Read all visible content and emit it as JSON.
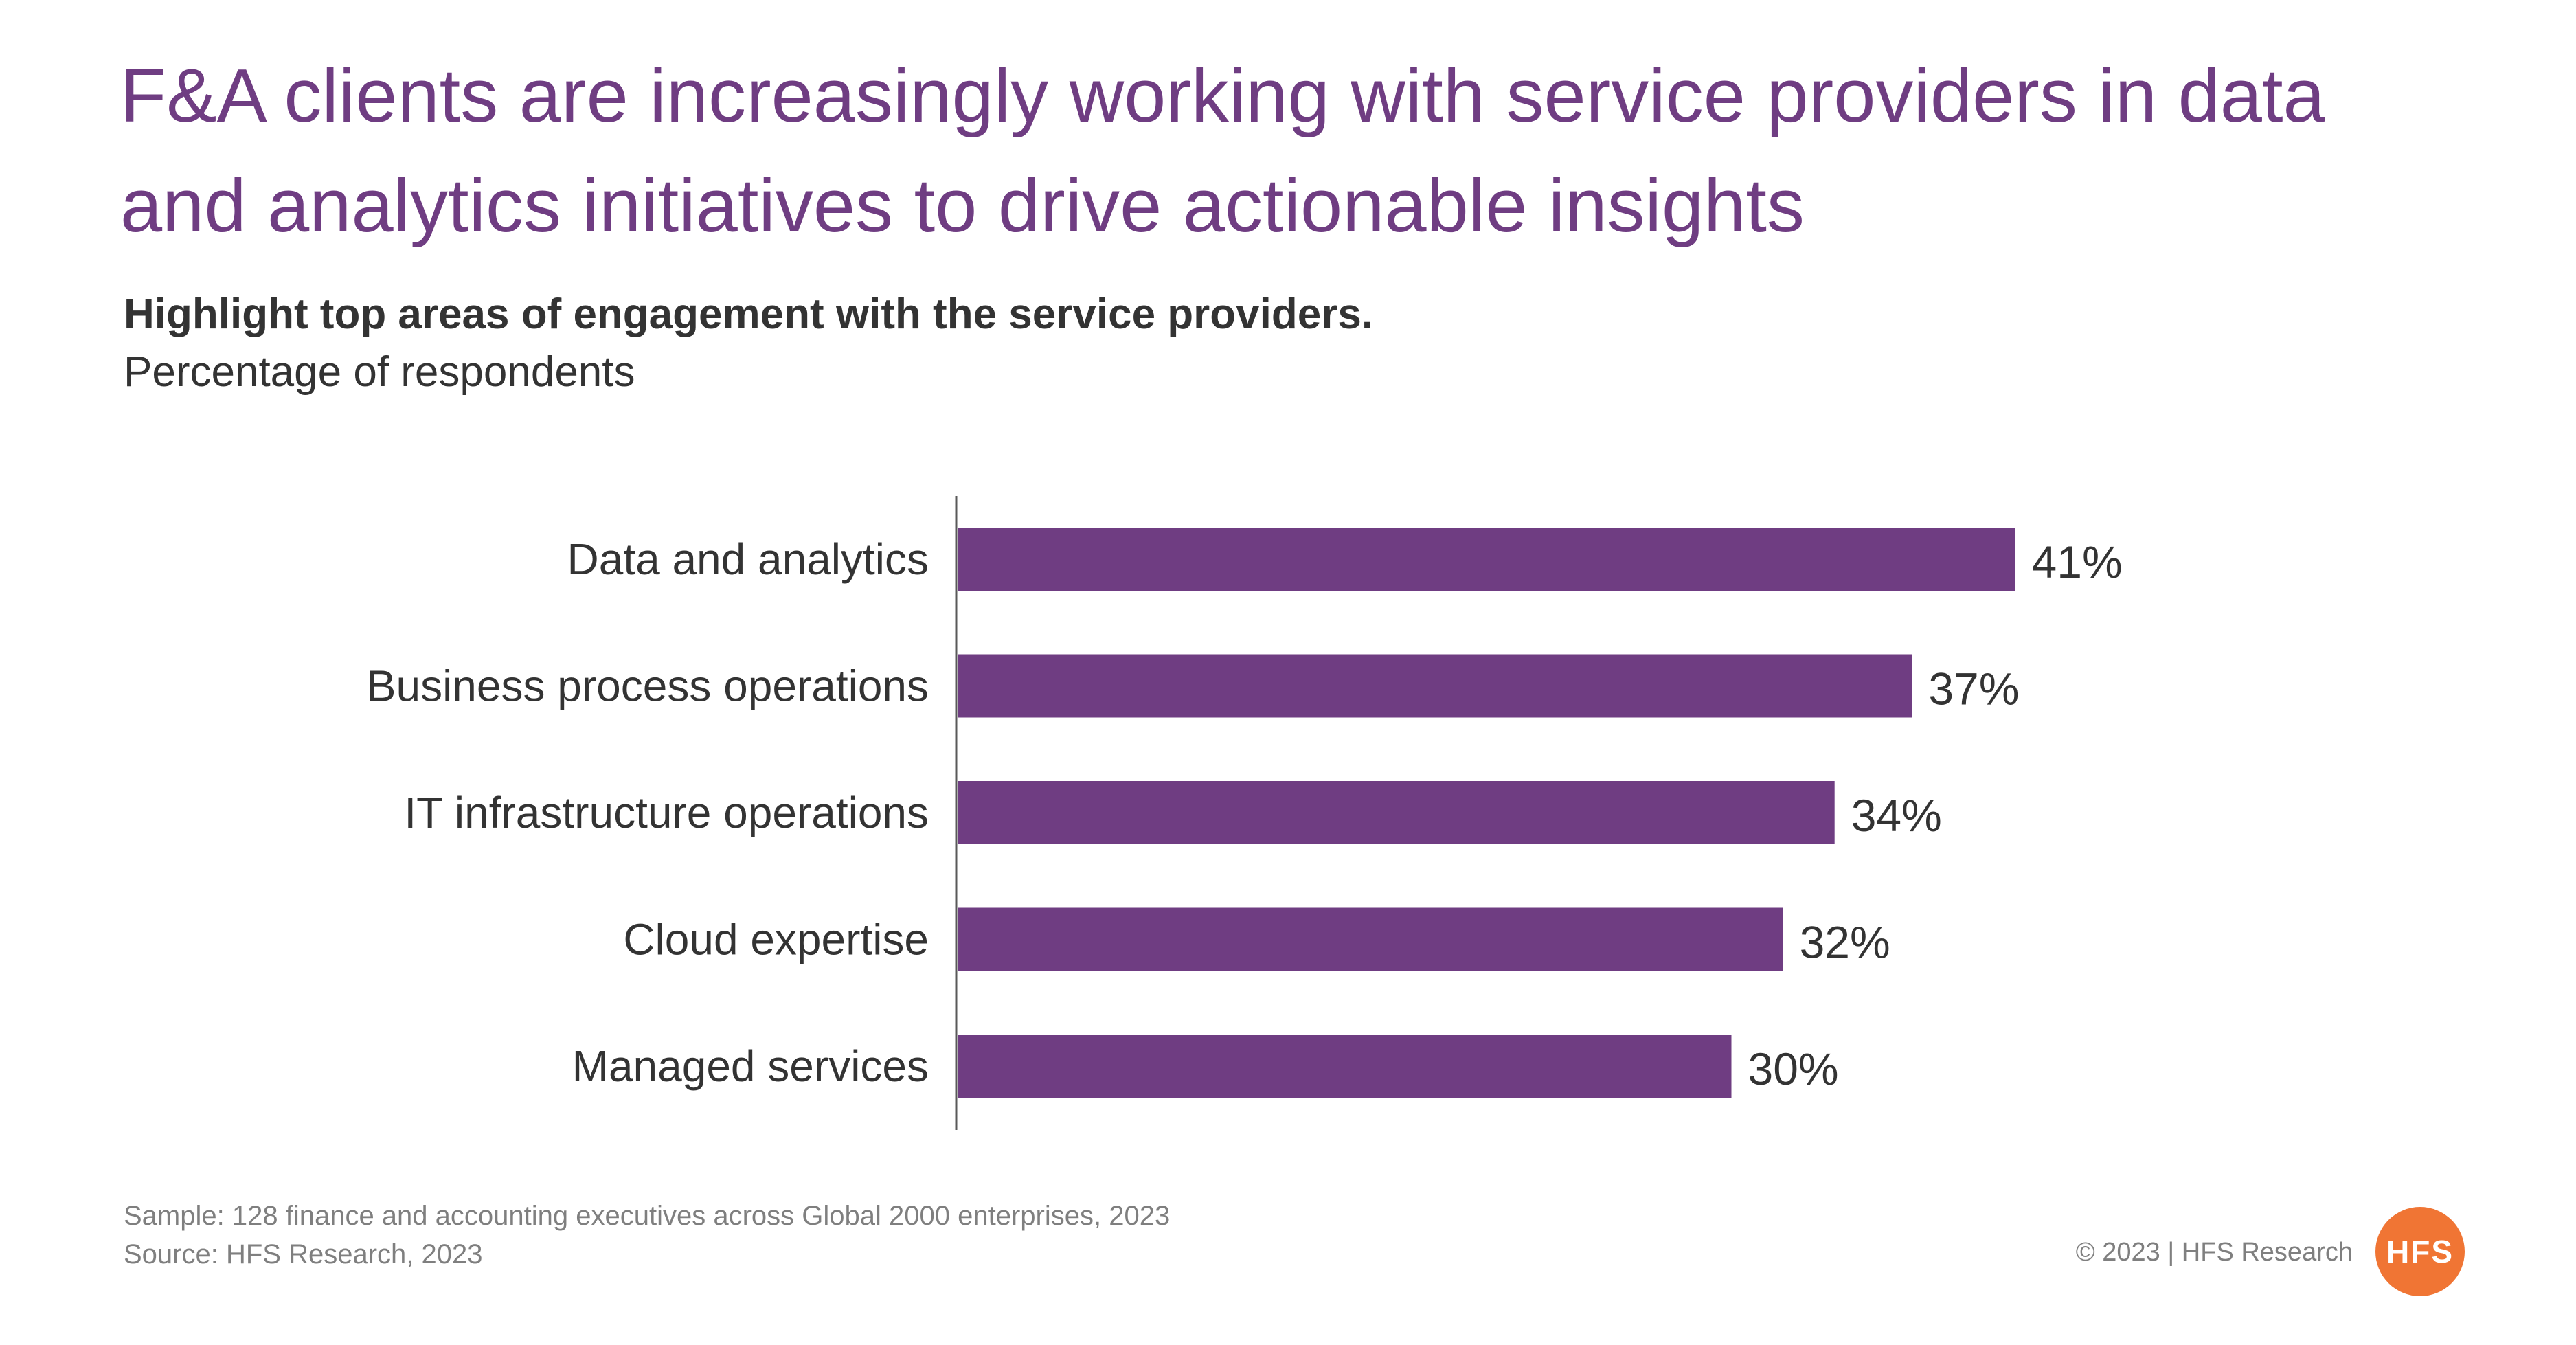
{
  "title": "F&A clients are increasingly working with service providers in data and analytics initiatives to drive actionable insights",
  "colors": {
    "title": "#6F3D82",
    "bar": "#6F3D82",
    "text": "#333333",
    "footnote": "#7f7f7f",
    "axis": "#595959",
    "logo": "#F07534"
  },
  "footer": {
    "sample": "Sample: 128 finance and accounting executives across Global 2000 enterprises, 2023",
    "source": "Source: HFS Research, 2023",
    "copyright": "© 2023 | HFS Research",
    "logo_text": "HFS"
  },
  "chart_data": {
    "type": "bar",
    "orientation": "horizontal",
    "title": "Highlight top areas of engagement with the service providers.",
    "subtitle": "Percentage of respondents",
    "categories": [
      "Data and analytics",
      "Business process operations",
      "IT infrastructure operations",
      "Cloud expertise",
      "Managed services"
    ],
    "values": [
      41,
      37,
      34,
      32,
      30
    ],
    "data_labels": [
      "41%",
      "37%",
      "34%",
      "32%",
      "30%"
    ],
    "unit": "%",
    "grid": false,
    "legend": "none"
  }
}
